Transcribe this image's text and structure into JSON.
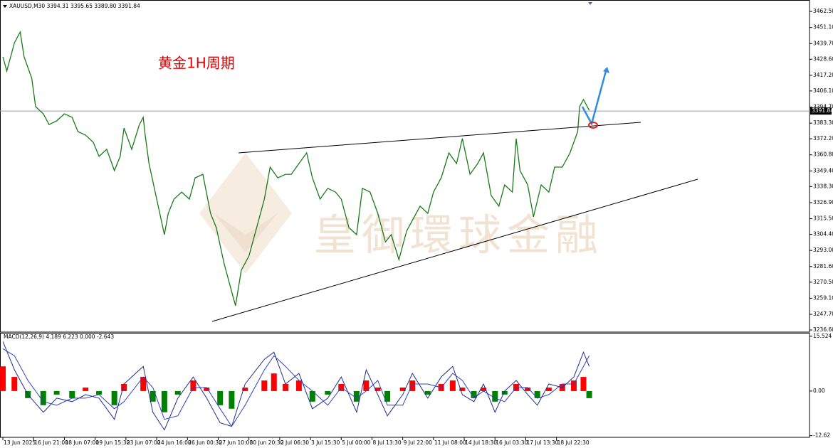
{
  "watermark": "皇御環球金融",
  "chart_data": [
    {
      "type": "line",
      "header": "XAUUSD,M30  3394.31 3395.65 3389.80 3391.84",
      "title": "黄金1H周期",
      "color": "#1a7a1a",
      "current_price": 3391.84,
      "xlim": [
        -1.5,
        419.6
      ],
      "ylim": [
        3235.1,
        3470.6
      ],
      "yticks": [
        {
          "value": 3462.5,
          "label": "3462.50"
        },
        {
          "value": 3451.1,
          "label": "3451.10"
        },
        {
          "value": 3439.7,
          "label": "3439.70"
        },
        {
          "value": 3428.6,
          "label": "3428.60"
        },
        {
          "value": 3417.2,
          "label": "3417.20"
        },
        {
          "value": 3406.1,
          "label": "3406.10"
        },
        {
          "value": 3394.7,
          "label": "3394.70"
        },
        {
          "value": 3383.3,
          "label": "3383.30"
        },
        {
          "value": 3372.2,
          "label": "3372.20"
        },
        {
          "value": 3360.8,
          "label": "3360.80"
        },
        {
          "value": 3349.4,
          "label": "3349.40"
        },
        {
          "value": 3338.3,
          "label": "3338.30"
        },
        {
          "value": 3326.9,
          "label": "3326.90"
        },
        {
          "value": 3315.5,
          "label": "3315.50"
        },
        {
          "value": 3304.4,
          "label": "3304.40"
        },
        {
          "value": 3293.0,
          "label": "3293.00"
        },
        {
          "value": 3281.6,
          "label": "3281.60"
        },
        {
          "value": 3270.5,
          "label": "3270.50"
        },
        {
          "value": 3259.1,
          "label": "3259.10"
        },
        {
          "value": 3247.7,
          "label": "3247.70"
        },
        {
          "value": 3236.6,
          "label": "3236.60"
        }
      ],
      "x": [
        0,
        2,
        6,
        9,
        11,
        15,
        17,
        21,
        24,
        28,
        32,
        36,
        39,
        43,
        47,
        50,
        54,
        58,
        61,
        63,
        67,
        71,
        73,
        74,
        76,
        80,
        84,
        86,
        89,
        93,
        97,
        100,
        104,
        108,
        111,
        115,
        119,
        121,
        124,
        128,
        132,
        136,
        139,
        143,
        147,
        150,
        154,
        158,
        161,
        165,
        169,
        173,
        176,
        180,
        184,
        187,
        191,
        195,
        199,
        202,
        206,
        210,
        213,
        217,
        221,
        224,
        228,
        232,
        236,
        239,
        243,
        247,
        250,
        254,
        258,
        261,
        265,
        267,
        269,
        273,
        276,
        280,
        284,
        287,
        291,
        295,
        299,
        300,
        302,
        305
      ],
      "values": [
        3430.3,
        3420.2,
        3440.3,
        3447.9,
        3430.3,
        3415.1,
        3395.0,
        3389.9,
        3382.3,
        3384.9,
        3389.9,
        3387.4,
        3377.3,
        3374.8,
        3369.7,
        3359.7,
        3364.7,
        3349.6,
        3359.7,
        3379.8,
        3364.7,
        3382.3,
        3387.4,
        3374.8,
        3354.6,
        3329.4,
        3304.2,
        3319.3,
        3329.4,
        3334.4,
        3329.4,
        3344.5,
        3347.0,
        3319.3,
        3309.2,
        3284.0,
        3263.8,
        3253.8,
        3279.0,
        3289.1,
        3309.2,
        3329.4,
        3352.1,
        3344.5,
        3347.0,
        3347.0,
        3354.6,
        3362.2,
        3344.5,
        3329.4,
        3337.0,
        3334.4,
        3329.4,
        3309.2,
        3304.2,
        3337.0,
        3334.4,
        3319.3,
        3299.1,
        3304.2,
        3286.5,
        3306.7,
        3314.3,
        3324.4,
        3319.3,
        3334.4,
        3344.5,
        3362.2,
        3354.6,
        3372.3,
        3347.0,
        3354.6,
        3362.2,
        3331.9,
        3324.4,
        3339.5,
        3334.4,
        3372.3,
        3349.6,
        3339.5,
        3316.8,
        3339.5,
        3334.4,
        3352.1,
        3352.1,
        3362.2,
        3377.3,
        3395.0,
        3400.0,
        3392.4
      ]
    },
    {
      "type": "macd",
      "header": "MACD(12,26,9) 4.189 6.223 0.000 -2.643",
      "xlim": [
        -1.5,
        419.6
      ],
      "ylim": [
        -13.1,
        16.3
      ],
      "yticks": [
        15.524,
        {
          "value": 0,
          "label": "0.00"
        },
        -12.62
      ],
      "xticks": [
        {
          "value": 0,
          "label": "13 Jun 2025"
        },
        {
          "value": 16,
          "label": "16 Jun 21:00"
        },
        {
          "value": 32,
          "label": "18 Jun 07:00"
        },
        {
          "value": 48,
          "label": "19 Jun 15:30"
        },
        {
          "value": 64,
          "label": "23 Jun 07:00"
        },
        {
          "value": 80,
          "label": "24 Jun 16:00"
        },
        {
          "value": 96,
          "label": "26 Jun 00:30"
        },
        {
          "value": 112,
          "label": "27 Jun 10:00"
        },
        {
          "value": 128,
          "label": "30 Jun 20:30"
        },
        {
          "value": 144,
          "label": "2 Jul 06:30"
        },
        {
          "value": 160,
          "label": "3 Jul 15:30"
        },
        {
          "value": 176,
          "label": "5 Jul 00:00"
        },
        {
          "value": 192,
          "label": "8 Jul 13:30"
        },
        {
          "value": 208,
          "label": "9 Jul 22:00"
        },
        {
          "value": 224,
          "label": "11 Jul 08:00"
        },
        {
          "value": 240,
          "label": "14 Jul 18:30"
        },
        {
          "value": 256,
          "label": "16 Jul 03:30"
        },
        {
          "value": 272,
          "label": "17 Jul 13:30"
        },
        {
          "value": 288,
          "label": "18 Jul 22:30"
        }
      ],
      "x": [
        0,
        6,
        13,
        21,
        28,
        36,
        43,
        50,
        58,
        63,
        73,
        78,
        84,
        91,
        99,
        106,
        113,
        119,
        126,
        136,
        141,
        147,
        154,
        161,
        169,
        176,
        184,
        189,
        195,
        200,
        208,
        213,
        221,
        228,
        234,
        239,
        245,
        250,
        256,
        261,
        267,
        273,
        278,
        284,
        291,
        297,
        302,
        305
      ],
      "histogram": {
        "up_color": "#ff0000",
        "down_color": "#008000",
        "values": [
          7,
          4,
          -2,
          -4,
          -1,
          -2,
          1,
          -1,
          -4,
          2,
          4,
          -3,
          -6,
          -1,
          3,
          1,
          -4,
          -5,
          1,
          3,
          5,
          2,
          3,
          -3,
          -1,
          2,
          -3,
          3,
          1,
          -3,
          1,
          3,
          -1,
          2,
          3,
          1,
          -2,
          1,
          -3,
          -1,
          2,
          1,
          -2,
          1,
          2,
          3,
          4,
          -2
        ]
      },
      "series": [
        {
          "color": "#1f2d8f",
          "values": [
            14,
            6,
            -1,
            -6,
            -2,
            -3,
            -1,
            -2,
            -8,
            2,
            7,
            -6,
            -11,
            -2,
            4,
            -2,
            -9,
            -10,
            2,
            9,
            11,
            2,
            5,
            -5,
            -2,
            4,
            -6,
            6,
            -1,
            -7,
            -1,
            5,
            -2,
            4,
            7,
            -1,
            -3,
            2,
            -6,
            0,
            3,
            -1,
            -4,
            2,
            1,
            4,
            11,
            7
          ]
        },
        {
          "color": "#3040c0",
          "values": [
            12,
            10,
            3,
            -3,
            -4,
            -2,
            -2,
            -1,
            -5,
            -3,
            4,
            1,
            -8,
            -7,
            1,
            1,
            -5,
            -10,
            -4,
            6,
            10,
            7,
            3,
            0,
            -4,
            1,
            -2,
            0,
            3,
            -4,
            -4,
            2,
            2,
            1,
            5,
            3,
            -2,
            0,
            -2,
            -3,
            1,
            1,
            -2,
            -1,
            2,
            2,
            7,
            10
          ]
        }
      ]
    }
  ]
}
